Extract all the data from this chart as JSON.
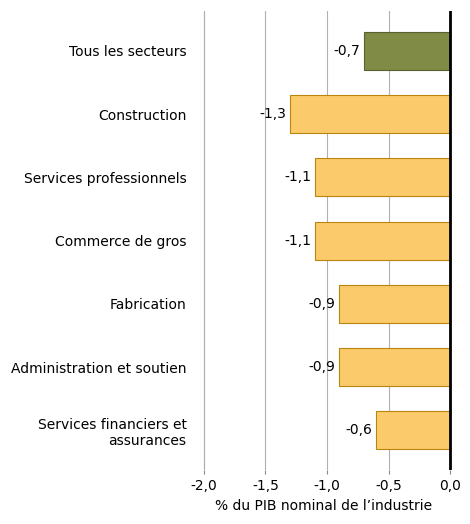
{
  "categories": [
    "Services financiers et\nassurances",
    "Administration et soutien",
    "Fabrication",
    "Commerce de gros",
    "Services professionnels",
    "Construction",
    "Tous les secteurs"
  ],
  "values": [
    -0.6,
    -0.9,
    -0.9,
    -1.1,
    -1.1,
    -1.3,
    -0.7
  ],
  "bar_colors": [
    "#FBCA6B",
    "#FBCA6B",
    "#FBCA6B",
    "#FBCA6B",
    "#FBCA6B",
    "#FBCA6B",
    "#808B45"
  ],
  "bar_edgecolors": [
    "#B8860B",
    "#B8860B",
    "#B8860B",
    "#B8860B",
    "#B8860B",
    "#B8860B",
    "#5A6030"
  ],
  "labels": [
    "-0,6",
    "-0,9",
    "-0,9",
    "-1,1",
    "-1,1",
    "-1,3",
    "-0,7"
  ],
  "xlabel": "% du PIB nominal de l’industrie",
  "xlim": [
    -2.1,
    0.05
  ],
  "xticks": [
    -2.0,
    -1.5,
    -1.0,
    -0.5,
    0.0
  ],
  "xticklabels": [
    "-2,0",
    "-1,5",
    "-1,0",
    "-0,5",
    "0,0"
  ],
  "background_color": "#ffffff",
  "grid_color": "#b0b0b0",
  "label_fontsize": 10,
  "tick_fontsize": 10,
  "xlabel_fontsize": 10,
  "bar_height": 0.6
}
